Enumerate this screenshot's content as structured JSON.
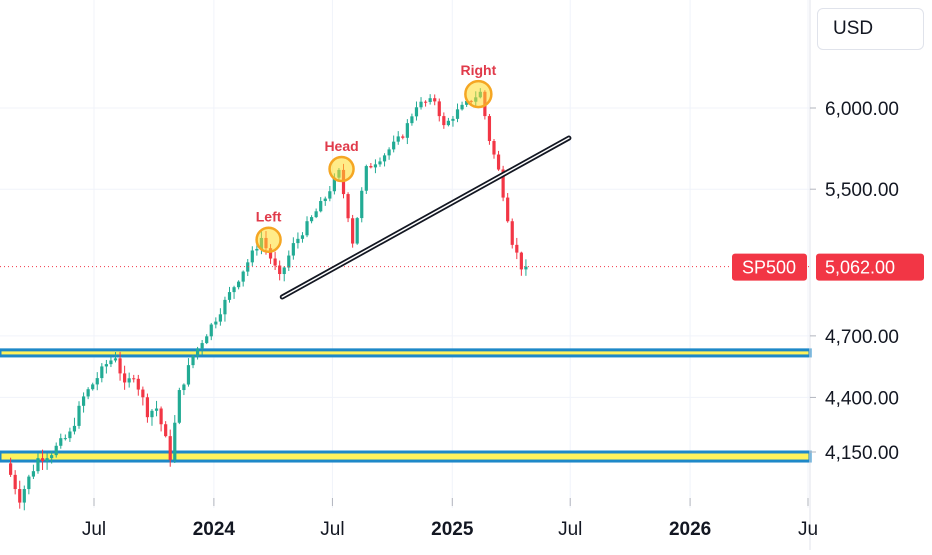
{
  "currency": "USD",
  "chart_data": {
    "type": "candlestick",
    "symbol": "SP500",
    "last_price": 5062,
    "last_price_label": "5,062.00",
    "colors": {
      "up": "#22ab94",
      "down": "#f23645",
      "zone_fill": "#fff35c",
      "zone_border": "#1e88c8",
      "annotation": "#e03a4a"
    },
    "y_ticks": [
      {
        "value": 6000,
        "label": "6,000.00"
      },
      {
        "value": 5500,
        "label": "5,500.00"
      },
      {
        "value": 4700,
        "label": "4,700.00"
      },
      {
        "value": 4400,
        "label": "4,400.00"
      },
      {
        "value": 4150,
        "label": "4,150.00"
      }
    ],
    "x_ticks": [
      {
        "date": "2023-07-01",
        "label": "Jul",
        "bold": false
      },
      {
        "date": "2024-01-01",
        "label": "2024",
        "bold": true
      },
      {
        "date": "2024-07-01",
        "label": "Jul",
        "bold": false
      },
      {
        "date": "2025-01-01",
        "label": "2025",
        "bold": true
      },
      {
        "date": "2025-07-01",
        "label": "Jul",
        "bold": false
      },
      {
        "date": "2026-01-01",
        "label": "2026",
        "bold": true
      },
      {
        "date": "2026-07-01",
        "label": "Ju",
        "bold": false
      }
    ],
    "price_path": [
      [
        "2023-02-20",
        4100
      ],
      [
        "2023-03-13",
        3950
      ],
      [
        "2023-04-10",
        4120
      ],
      [
        "2023-05-01",
        4150
      ],
      [
        "2023-05-29",
        4230
      ],
      [
        "2023-06-19",
        4400
      ],
      [
        "2023-07-24",
        4560
      ],
      [
        "2023-08-07",
        4600
      ],
      [
        "2023-08-21",
        4450
      ],
      [
        "2023-09-04",
        4510
      ],
      [
        "2023-09-25",
        4330
      ],
      [
        "2023-10-09",
        4350
      ],
      [
        "2023-10-30",
        4130
      ],
      [
        "2023-11-13",
        4420
      ],
      [
        "2023-12-04",
        4600
      ],
      [
        "2024-01-08",
        4790
      ],
      [
        "2024-02-12",
        5000
      ],
      [
        "2024-03-18",
        5220
      ],
      [
        "2024-04-15",
        5000
      ],
      [
        "2024-05-06",
        5180
      ],
      [
        "2024-06-03",
        5330
      ],
      [
        "2024-06-24",
        5450
      ],
      [
        "2024-07-15",
        5600
      ],
      [
        "2024-07-29",
        5350
      ],
      [
        "2024-08-05",
        5200
      ],
      [
        "2024-08-26",
        5620
      ],
      [
        "2024-09-23",
        5710
      ],
      [
        "2024-10-21",
        5830
      ],
      [
        "2024-11-11",
        6020
      ],
      [
        "2024-12-09",
        6050
      ],
      [
        "2024-12-23",
        5880
      ],
      [
        "2025-01-13",
        5980
      ],
      [
        "2025-02-17",
        6100
      ],
      [
        "2025-03-03",
        5800
      ],
      [
        "2025-03-17",
        5610
      ],
      [
        "2025-04-07",
        5200
      ],
      [
        "2025-04-21",
        5062
      ]
    ],
    "annotations": [
      {
        "label": "Left",
        "date": "2024-03-25",
        "price": 5210
      },
      {
        "label": "Head",
        "date": "2024-07-15",
        "price": 5620
      },
      {
        "label": "Right",
        "date": "2025-02-10",
        "price": 6090
      }
    ],
    "neckline": {
      "start": [
        "2024-04-15",
        4900
      ],
      "end": [
        "2025-06-29",
        5810
      ]
    },
    "support_zones": [
      {
        "from": 4600,
        "to": 4630
      },
      {
        "from": 4110,
        "to": 4150
      }
    ]
  }
}
